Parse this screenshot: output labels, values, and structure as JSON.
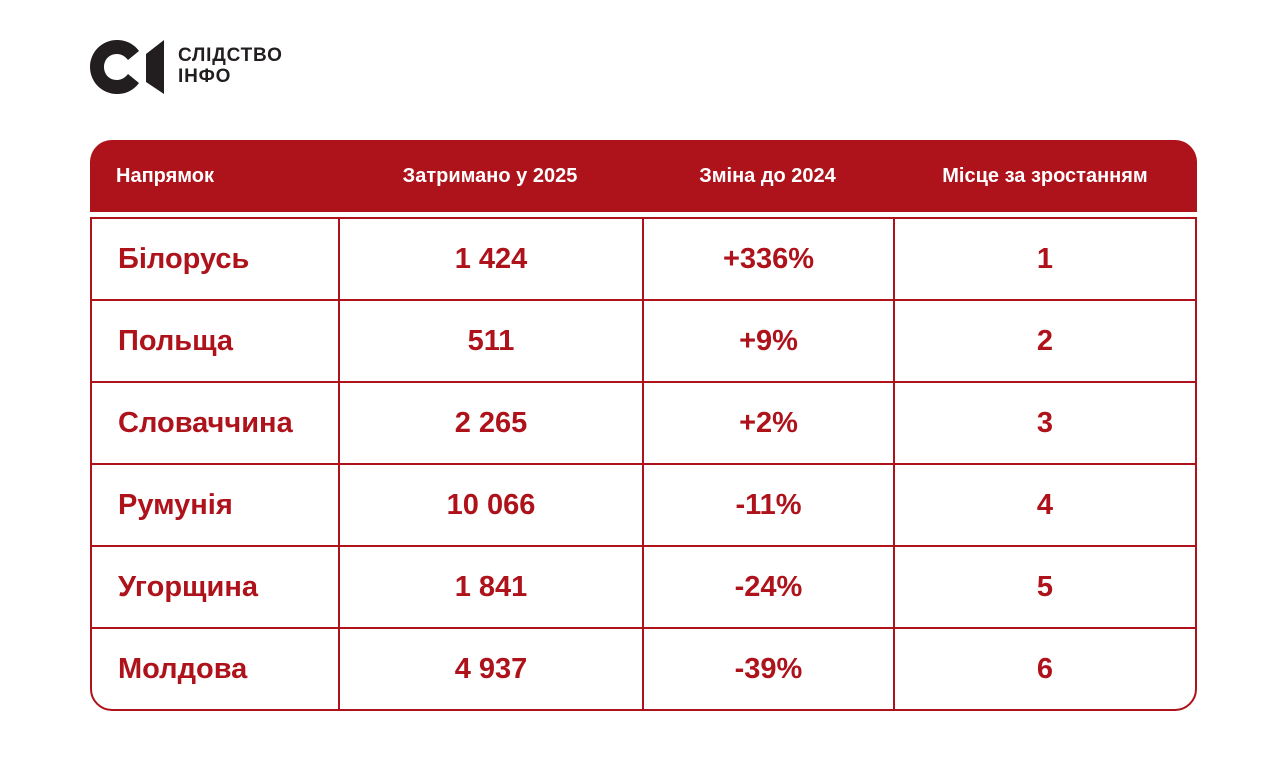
{
  "colors": {
    "accent_red": "#ae121b",
    "logo_black": "#221e1f",
    "background": "#ffffff",
    "header_text": "#ffffff"
  },
  "logo": {
    "mark_letter": "С",
    "name_line1": "СЛІДСТВО",
    "name_line2": "ІНФО"
  },
  "table": {
    "columns": [
      "Напрямок",
      "Затримано у 2025",
      "Зміна до 2024",
      "Місце за зростанням"
    ],
    "rows": [
      {
        "direction": "Білорусь",
        "detained_2025": "1 424",
        "change_vs_2024": "+336%",
        "rank": "1"
      },
      {
        "direction": "Польща",
        "detained_2025": "511",
        "change_vs_2024": "+9%",
        "rank": "2"
      },
      {
        "direction": "Словаччина",
        "detained_2025": "2 265",
        "change_vs_2024": "+2%",
        "rank": "3"
      },
      {
        "direction": "Румунія",
        "detained_2025": "10 066",
        "change_vs_2024": "-11%",
        "rank": "4"
      },
      {
        "direction": "Угорщина",
        "detained_2025": "1 841",
        "change_vs_2024": "-24%",
        "rank": "5"
      },
      {
        "direction": "Молдова",
        "detained_2025": "4 937",
        "change_vs_2024": "-39%",
        "rank": "6"
      }
    ]
  },
  "chart_data": {
    "type": "table",
    "title": "",
    "columns": [
      "Напрямок",
      "Затримано у 2025",
      "Зміна до 2024",
      "Місце за зростанням"
    ],
    "categories": [
      "Білорусь",
      "Польща",
      "Словаччина",
      "Румунія",
      "Угорщина",
      "Молдова"
    ],
    "series": [
      {
        "name": "Затримано у 2025",
        "values": [
          1424,
          511,
          2265,
          10066,
          1841,
          4937
        ]
      },
      {
        "name": "Зміна до 2024, %",
        "values": [
          336,
          9,
          2,
          -11,
          -24,
          -39
        ]
      },
      {
        "name": "Місце за зростанням",
        "values": [
          1,
          2,
          3,
          4,
          5,
          6
        ]
      }
    ]
  }
}
